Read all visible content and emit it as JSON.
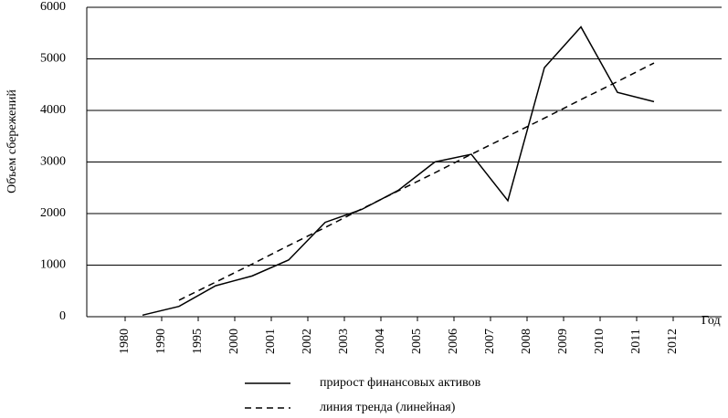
{
  "chart_data": {
    "type": "line",
    "ylabel": "Объем  сбережений",
    "xlabel": "Год",
    "categories": [
      "1980",
      "1990",
      "1995",
      "2000",
      "2001",
      "2002",
      "2003",
      "2004",
      "2005",
      "2006",
      "2007",
      "2008",
      "2009",
      "2010",
      "2011",
      "2012"
    ],
    "series": [
      {
        "name": "прирост финансовых активов",
        "color": "#000000",
        "dash": false,
        "values": [
          30,
          200,
          600,
          790,
          1100,
          1830,
          2080,
          2450,
          3000,
          3150,
          2250,
          4830,
          5620,
          4350,
          4170,
          null
        ]
      },
      {
        "name": "линия тренда (линейная)",
        "color": "#000000",
        "dash": true,
        "values": [
          null,
          320,
          670,
          1020,
          1380,
          1730,
          2090,
          2440,
          2790,
          3150,
          3500,
          3850,
          4210,
          4560,
          4920,
          null
        ]
      }
    ],
    "ylim": [
      0,
      6000
    ],
    "yticks": [
      0,
      1000,
      2000,
      3000,
      4000,
      5000,
      6000
    ],
    "grid": true
  }
}
